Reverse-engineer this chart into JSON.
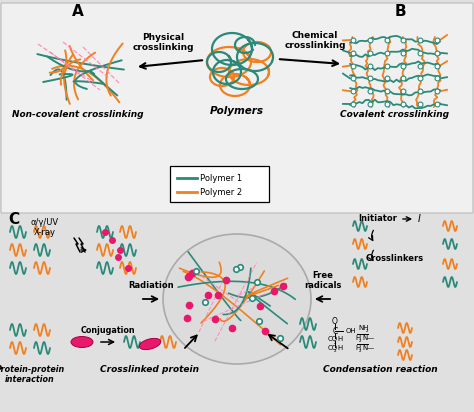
{
  "bg_color": "#e0e0e0",
  "teal": "#2a8a7a",
  "orange": "#f08020",
  "pink": "#e8186a",
  "dashed_pink": "#ff80b0",
  "white": "#ffffff",
  "black": "#000000",
  "node_color": "#c8e8e0",
  "title_A": "A",
  "title_B": "B",
  "title_C": "C",
  "label_polymers": "Polymers",
  "label_phys": "Physical\ncrosslinking",
  "label_chem": "Chemical\ncrosslinking",
  "label_noncov": "Non-covalent crosslinking",
  "label_cov": "Covalent crosslinking",
  "legend_p1": "Polymer 1",
  "legend_p2": "Polymer 2",
  "label_radiation": "Radiation",
  "label_xray": "α/γ/UV\nX-ray",
  "label_initiator": "Initiator",
  "label_freeradicals": "Free\nradicals",
  "label_crosslinkers": "Crosslinkers",
  "label_conjugation": "Conjugation",
  "label_protein": "Protein-protein\ninteraction",
  "label_crosslinked": "Crosslinked protein",
  "label_condensation": "Condensation reaction",
  "label_I": "I"
}
